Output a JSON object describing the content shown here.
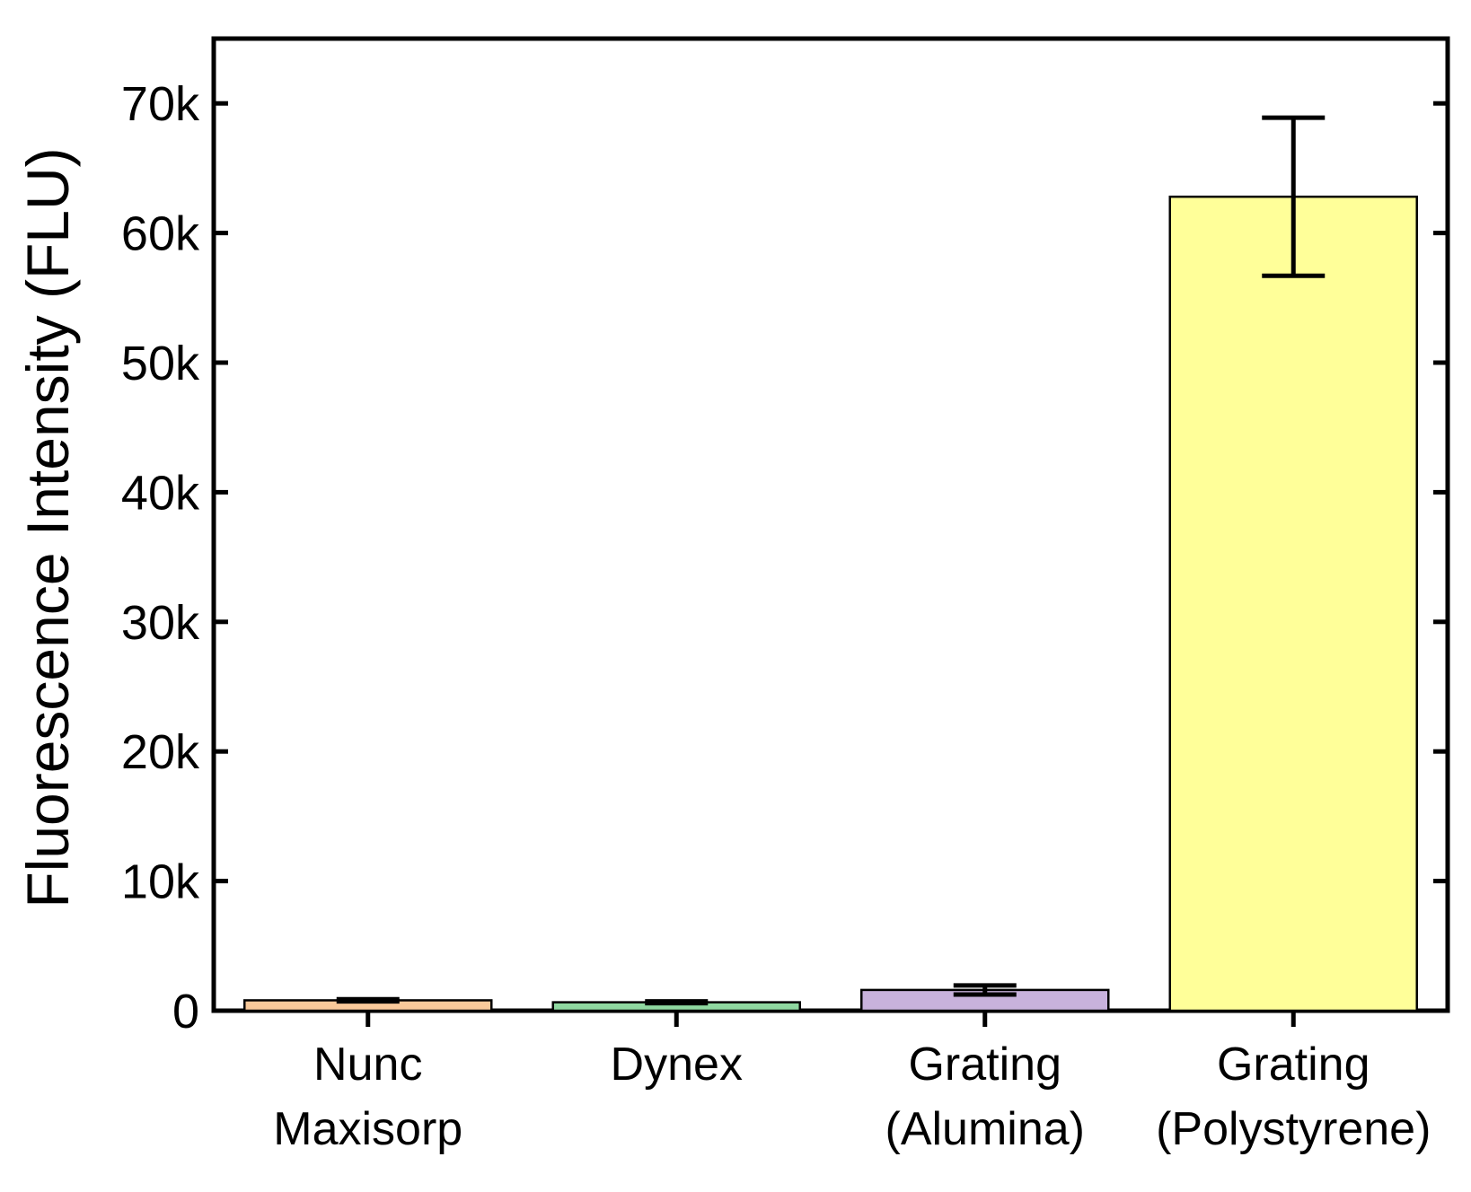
{
  "chart_data": {
    "type": "bar",
    "title": "",
    "xlabel": "",
    "ylabel": "Fluorescence Intensity (FLU)",
    "ylim": [
      0,
      75000
    ],
    "yticks": [
      0,
      10000,
      20000,
      30000,
      40000,
      50000,
      60000,
      70000
    ],
    "ytick_labels": [
      "0",
      "10k",
      "20k",
      "30k",
      "40k",
      "50k",
      "60k",
      "70k"
    ],
    "categories": [
      [
        "Nunc",
        "Maxisorp"
      ],
      [
        "Dynex"
      ],
      [
        "Grating",
        "(Alumina)"
      ],
      [
        "Grating",
        "(Polystyrene)"
      ]
    ],
    "values": [
      800,
      650,
      1600,
      62800
    ],
    "errors": [
      80,
      70,
      350,
      6100
    ],
    "colors": [
      "#f9c99a",
      "#8fd8a0",
      "#c8b2dc",
      "#ffff99"
    ],
    "grid": false,
    "legend": "none"
  }
}
